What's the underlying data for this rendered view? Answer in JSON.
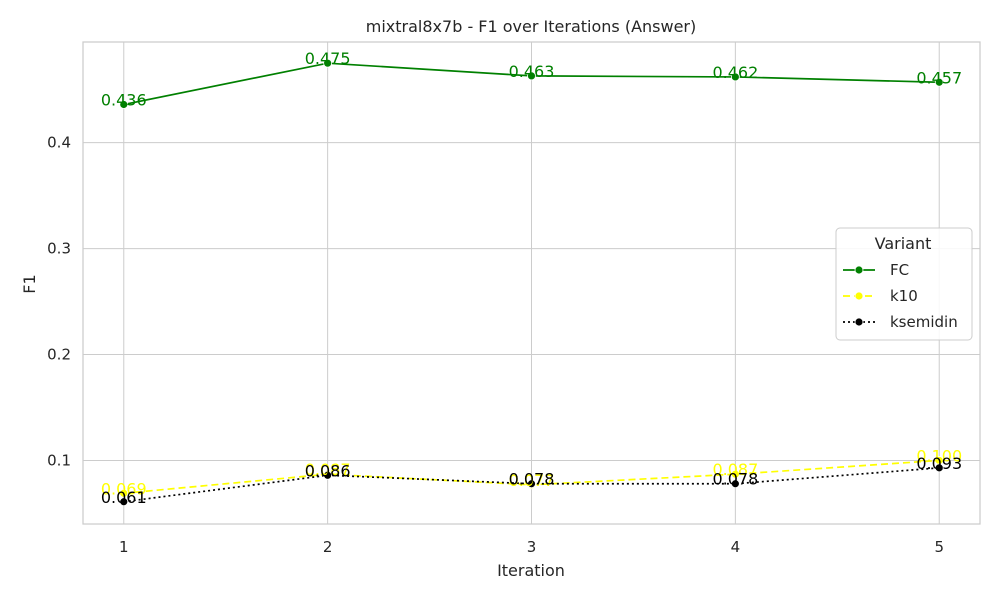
{
  "chart_data": {
    "type": "line",
    "title": "mixtral8x7b - F1 over Iterations (Answer)",
    "xlabel": "Iteration",
    "ylabel": "F1",
    "x": [
      1,
      2,
      3,
      4,
      5
    ],
    "x_ticks": [
      "1",
      "2",
      "3",
      "4",
      "5"
    ],
    "xlim": [
      0.8,
      5.2
    ],
    "ylim": [
      0.04,
      0.495
    ],
    "y_ticks": [
      "0.1",
      "0.2",
      "0.3",
      "0.4"
    ],
    "grid": true,
    "legend": {
      "title": "Variant",
      "placement": "center-right"
    },
    "series": [
      {
        "name": "FC",
        "values": [
          0.436,
          0.475,
          0.463,
          0.462,
          0.457
        ],
        "labels": [
          "0.436",
          "0.475",
          "0.463",
          "0.462",
          "0.457"
        ],
        "color": "#008000",
        "dash": "solid"
      },
      {
        "name": "k10",
        "values": [
          0.069,
          0.087,
          0.077,
          0.087,
          0.1
        ],
        "labels": [
          "0.069",
          "0.087",
          "0.077",
          "0.087",
          "0.100"
        ],
        "color": "#ffff00",
        "dash": "dashed"
      },
      {
        "name": "ksemidin",
        "values": [
          0.061,
          0.086,
          0.078,
          0.078,
          0.093
        ],
        "labels": [
          "0.061",
          "0.086",
          "0.078",
          "0.078",
          "0.093"
        ],
        "color": "#000000",
        "dash": "dotted"
      }
    ]
  }
}
